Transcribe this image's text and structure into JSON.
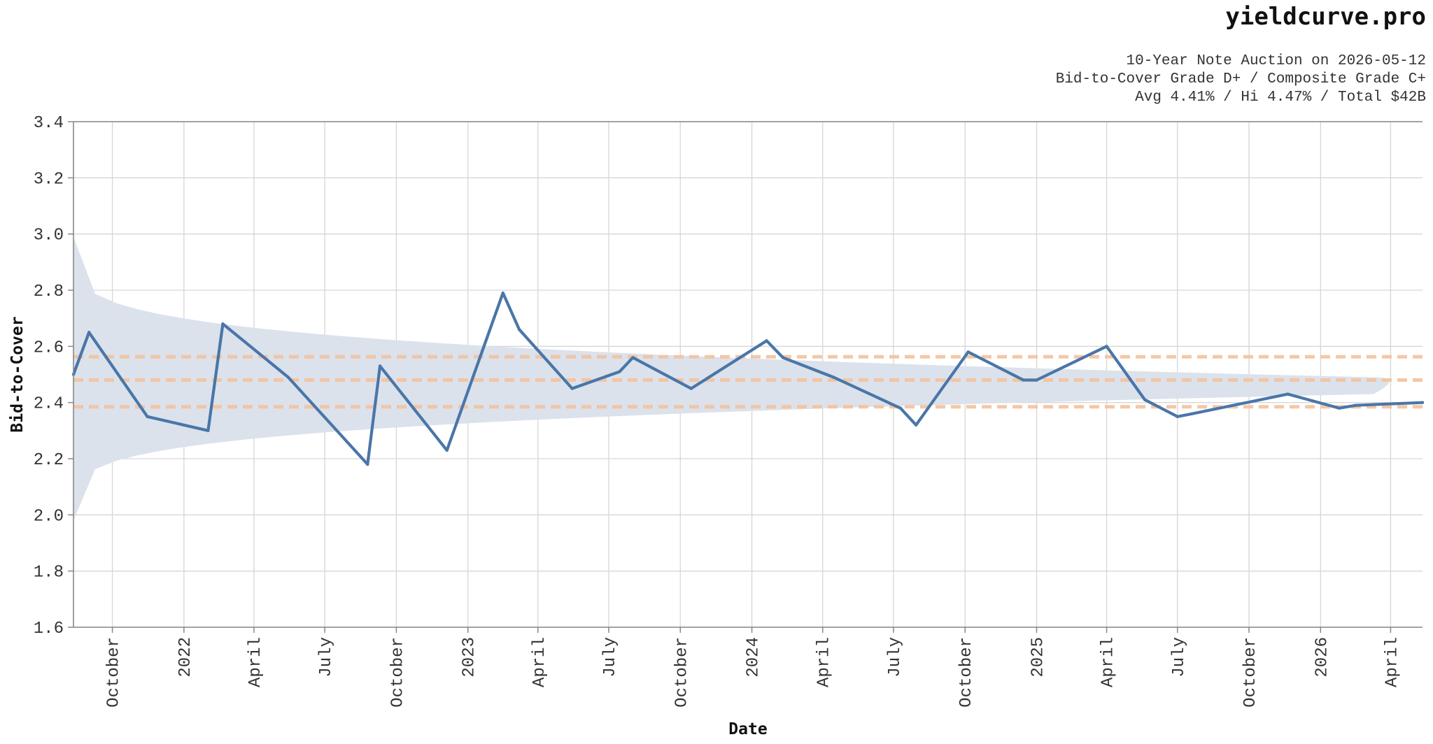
{
  "header": {
    "brand": "yieldcurve.pro",
    "line1": "10-Year Note Auction on 2026-05-12",
    "line2": "Bid-to-Cover Grade D+ / Composite Grade C+",
    "line3": "Avg 4.41% / Hi 4.47% / Total $42B"
  },
  "colors": {
    "line": "#4a76a8",
    "band": "#dbe2ec",
    "reference": "#f4c29c",
    "grid": "#d6d6d6",
    "axis": "#888888"
  },
  "chart_data": {
    "type": "line",
    "xlabel": "Date",
    "ylabel": "Bid-to-Cover",
    "ylim": [
      1.6,
      3.4
    ],
    "xlim": [
      "2021-08-12",
      "2026-05-12"
    ],
    "grid": true,
    "x_tick_labels": [
      "October",
      "2022",
      "April",
      "July",
      "October",
      "2023",
      "April",
      "July",
      "October",
      "2024",
      "April",
      "July",
      "October",
      "2025",
      "April",
      "July",
      "October",
      "2026",
      "April"
    ],
    "x_tick_dates": [
      "2021-10-01",
      "2022-01-01",
      "2022-04-01",
      "2022-07-01",
      "2022-10-01",
      "2023-01-01",
      "2023-04-01",
      "2023-07-01",
      "2023-10-01",
      "2024-01-01",
      "2024-04-01",
      "2024-07-01",
      "2024-10-01",
      "2025-01-01",
      "2025-04-01",
      "2025-07-01",
      "2025-10-01",
      "2026-01-01",
      "2026-04-01"
    ],
    "y_ticks": [
      "1.6",
      "1.8",
      "2.0",
      "2.2",
      "2.4",
      "2.6",
      "2.8",
      "3.0",
      "3.2",
      "3.4"
    ],
    "series": [
      {
        "x": [
          "2021-08-12",
          "2021-09-01",
          "2021-11-15",
          "2022-02-01",
          "2022-02-20",
          "2022-05-15",
          "2022-08-25",
          "2022-09-10",
          "2022-12-05",
          "2023-02-15",
          "2023-03-08",
          "2023-05-15",
          "2023-07-15",
          "2023-08-01",
          "2023-10-15",
          "2024-01-20",
          "2024-02-10",
          "2024-04-15",
          "2024-07-10",
          "2024-07-30",
          "2024-10-05",
          "2024-12-15",
          "2025-01-01",
          "2025-04-01",
          "2025-05-20",
          "2025-07-01",
          "2025-07-20",
          "2025-11-20",
          "2026-01-25",
          "2026-02-15",
          "2026-05-12"
        ],
        "values": [
          2.5,
          2.65,
          2.35,
          2.3,
          2.68,
          2.49,
          2.18,
          2.53,
          2.23,
          2.79,
          2.66,
          2.45,
          2.51,
          2.56,
          2.45,
          2.62,
          2.56,
          2.49,
          2.38,
          2.32,
          2.58,
          2.48,
          2.48,
          2.6,
          2.41,
          2.35,
          2.36,
          2.43,
          2.38,
          2.39,
          2.4
        ]
      }
    ],
    "reference_lines": [
      2.385,
      2.48,
      2.563
    ],
    "band": {
      "center": 2.48,
      "upper_at_start": 2.99,
      "lower_at_start": 1.98,
      "upper_at_end": 2.49,
      "lower_at_end": 2.43,
      "tip_date": "2026-03-10"
    }
  }
}
